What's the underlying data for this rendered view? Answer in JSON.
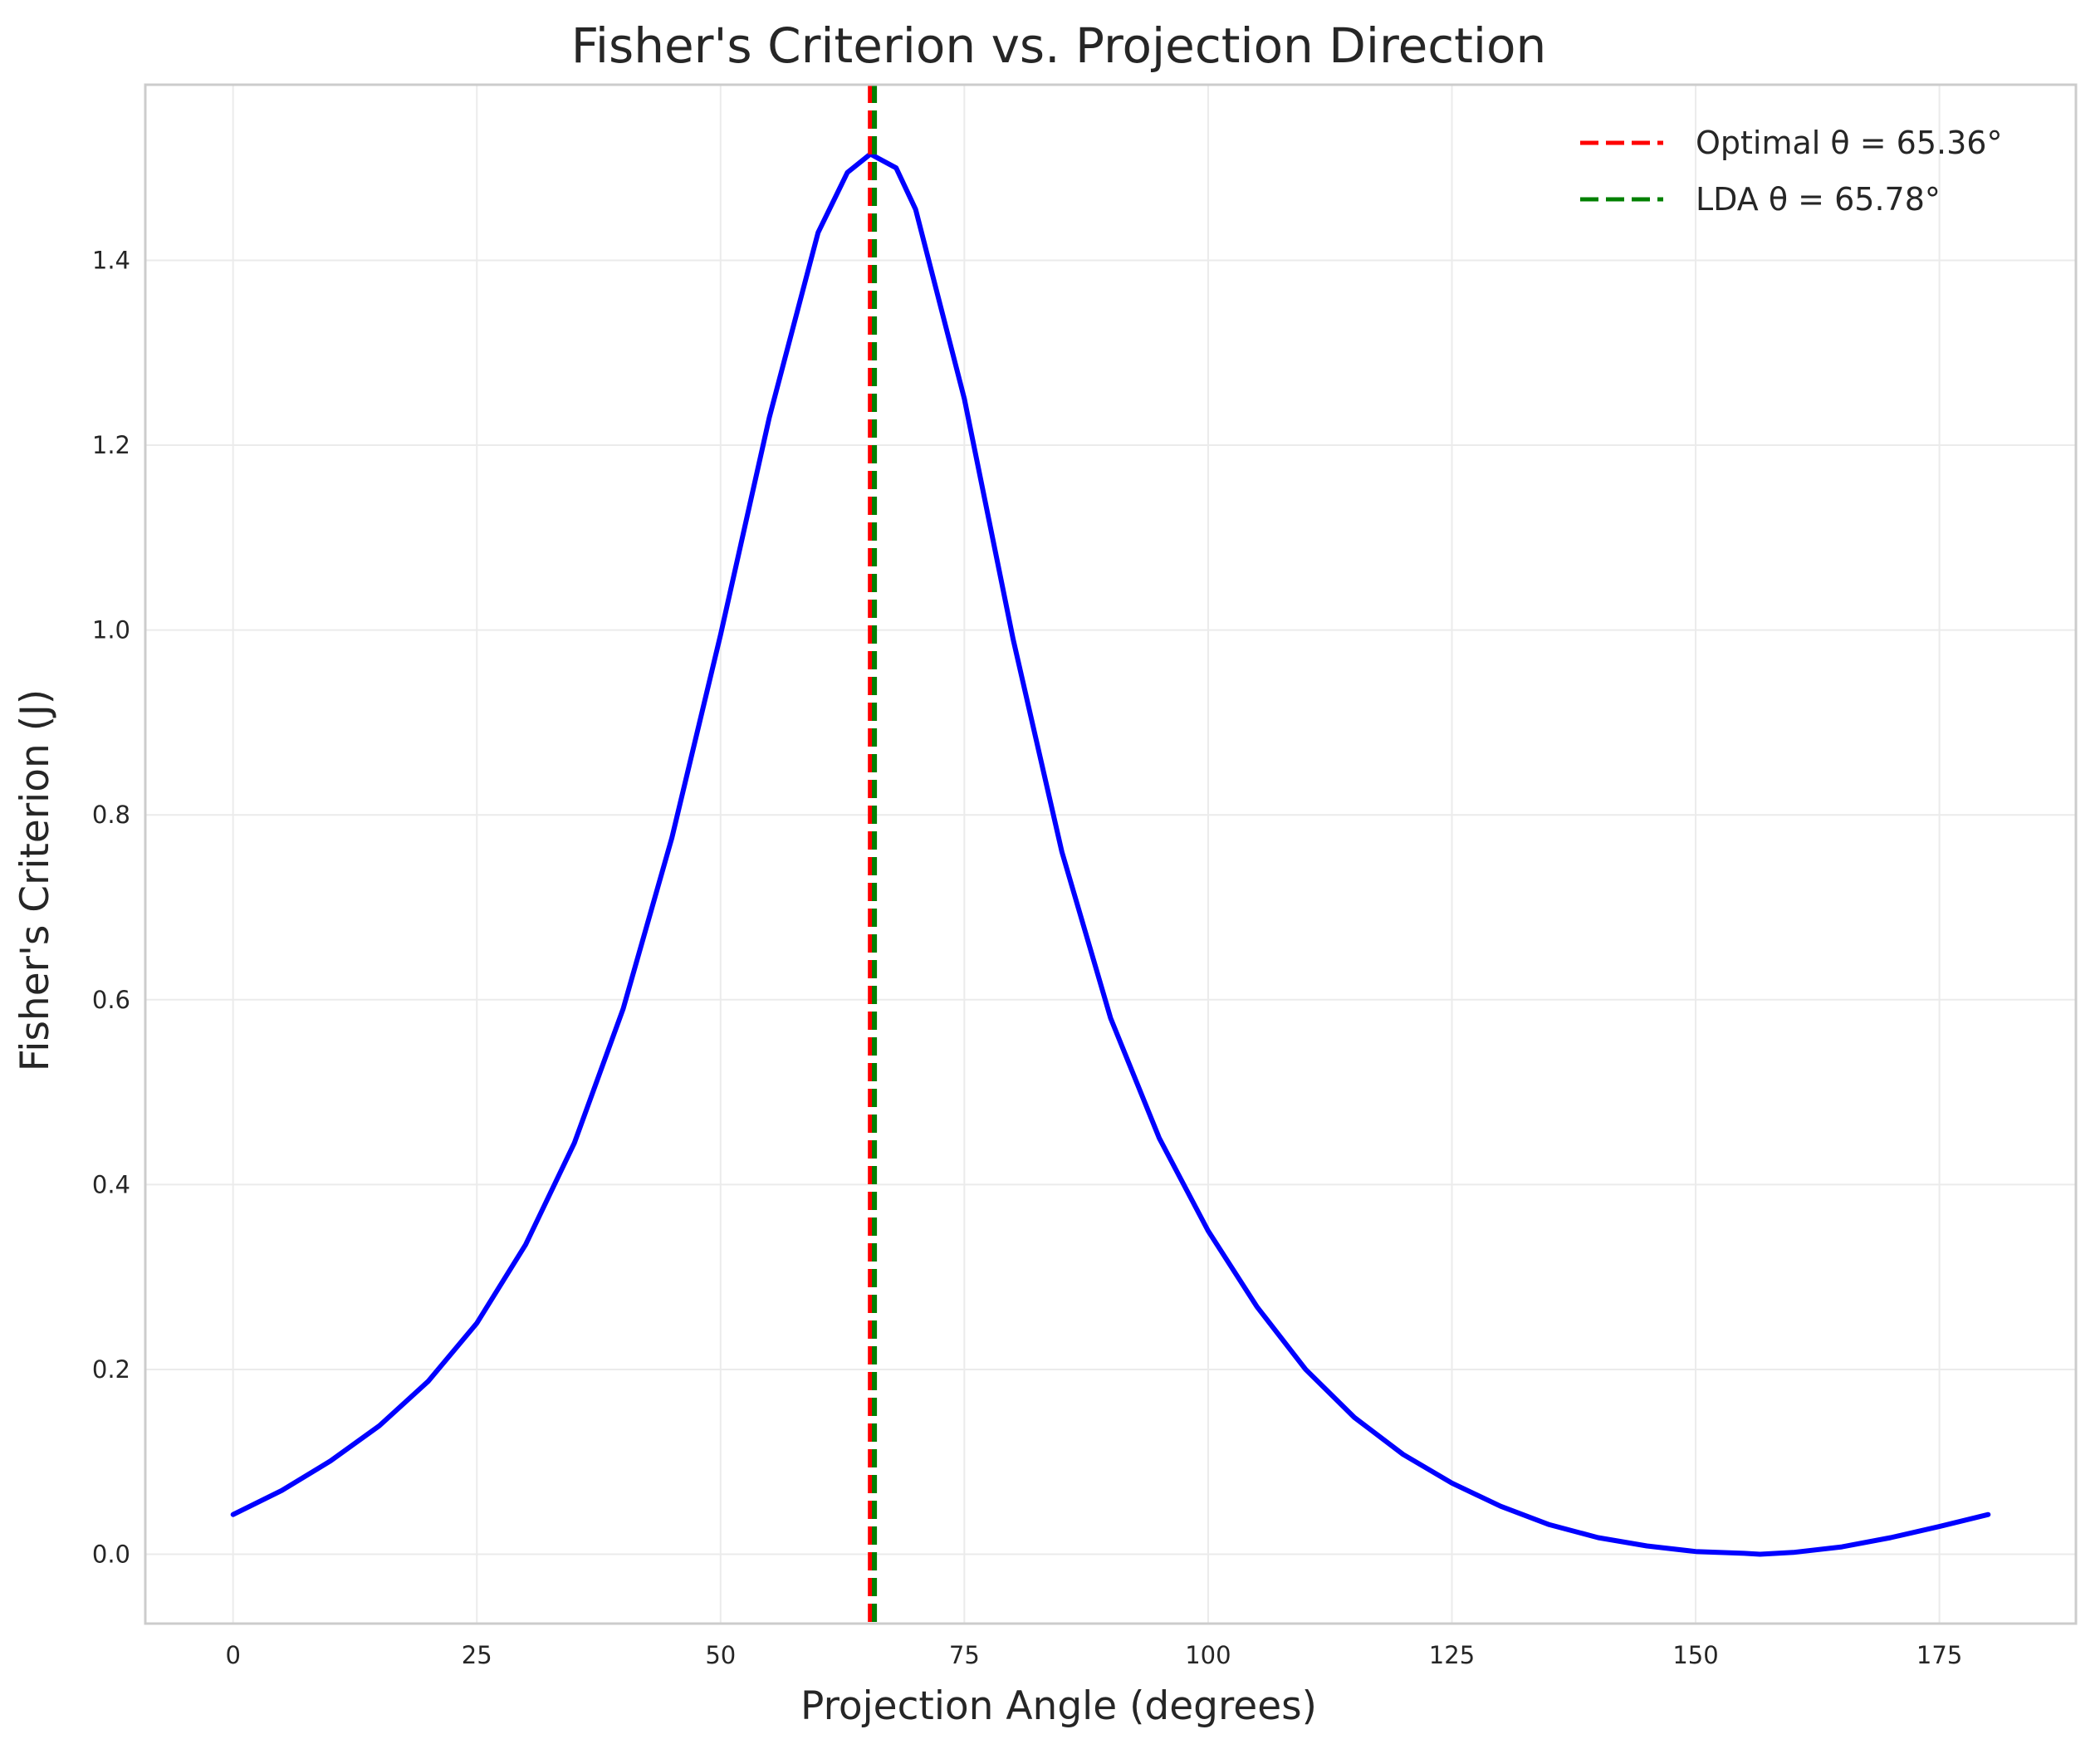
{
  "chart_data": {
    "type": "line",
    "title": "Fisher's Criterion vs. Projection Direction",
    "xlabel": "Projection Angle (degrees)",
    "ylabel": "Fisher's Criterion (J)",
    "xlim": [
      -9,
      189
    ],
    "ylim": [
      -0.075,
      1.59
    ],
    "xticks": [
      0,
      25,
      50,
      75,
      100,
      125,
      150,
      175
    ],
    "yticks": [
      0.0,
      0.2,
      0.4,
      0.6,
      0.8,
      1.0,
      1.2,
      1.4
    ],
    "grid": true,
    "legend_position": "top-right",
    "series": [
      {
        "color": "#0000ff",
        "x": [
          0,
          5,
          10,
          15,
          20,
          25,
          30,
          35,
          40,
          45,
          50,
          55,
          60,
          63,
          65.36,
          68,
          70,
          75,
          80,
          85,
          90,
          95,
          100,
          105,
          110,
          115,
          120,
          125,
          130,
          135,
          140,
          145,
          150,
          155,
          156.6,
          160,
          165,
          170,
          175,
          180
        ],
        "values": [
          0.043,
          0.069,
          0.101,
          0.139,
          0.187,
          0.25,
          0.335,
          0.445,
          0.59,
          0.775,
          0.995,
          1.23,
          1.43,
          1.495,
          1.515,
          1.5,
          1.455,
          1.25,
          0.99,
          0.76,
          0.58,
          0.45,
          0.35,
          0.268,
          0.2,
          0.148,
          0.108,
          0.077,
          0.052,
          0.032,
          0.018,
          0.009,
          0.003,
          0.001,
          0.0,
          0.002,
          0.008,
          0.018,
          0.03,
          0.043
        ]
      }
    ],
    "vlines": [
      {
        "name": "Optimal θ = 65.36°",
        "x": 65.36,
        "color": "#ff0000",
        "style": "dashed"
      },
      {
        "name": "LDA θ = 65.78°",
        "x": 65.78,
        "color": "#008000",
        "style": "dashed"
      }
    ]
  }
}
